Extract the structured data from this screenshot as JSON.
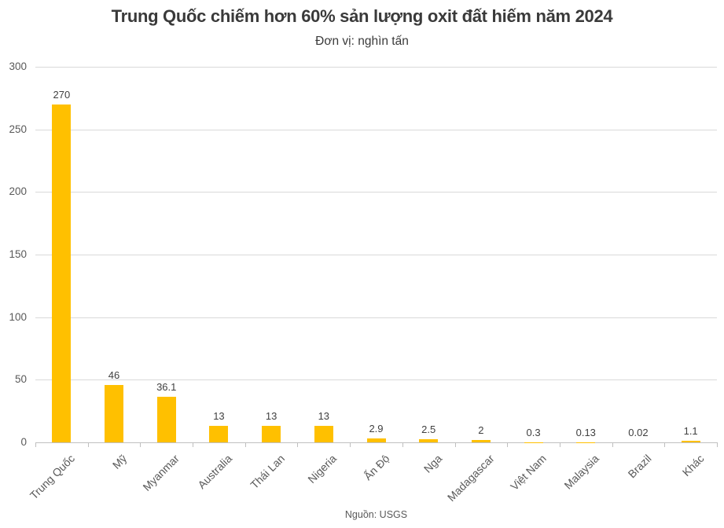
{
  "header": {
    "title": "Trung Quốc chiếm hơn 60% sản lượng oxit đất hiếm năm 2024",
    "subtitle": "Đơn vị: nghìn tấn"
  },
  "source": "Nguồn: USGS",
  "chart_data": {
    "type": "bar",
    "title": "Trung Quốc chiếm hơn 60% sản lượng oxit đất hiếm năm 2024",
    "subtitle": "Đơn vị: nghìn tấn",
    "categories": [
      "Trung Quốc",
      "Mỹ",
      "Myanmar",
      "Australia",
      "Thái Lan",
      "Nigeria",
      "Ấn Độ",
      "Nga",
      "Madagascar",
      "Việt Nam",
      "Malaysia",
      "Brazil",
      "Khác"
    ],
    "values": [
      270,
      46,
      36.1,
      13,
      13,
      13,
      2.9,
      2.5,
      2,
      0.3,
      0.13,
      0.02,
      1.1
    ],
    "value_labels": [
      "270",
      "46",
      "36.1",
      "13",
      "13",
      "13",
      "2.9",
      "2.5",
      "2",
      "0.3",
      "0.13",
      "0.02",
      "1.1"
    ],
    "xlabel": "",
    "ylabel": "",
    "ylim": [
      0,
      300
    ],
    "yticks": [
      0,
      50,
      100,
      150,
      200,
      250,
      300
    ],
    "grid": true,
    "legend": false,
    "source": "Nguồn: USGS"
  },
  "colors": {
    "bar": "#FFC000",
    "title_text": "#3A3A3A",
    "subtitle_text": "#3A3A3A",
    "axis_text": "#595959",
    "value_text": "#404040",
    "gridline": "#D9D9D9",
    "axis_line": "#BFBFBF",
    "background": "#FFFFFF"
  }
}
